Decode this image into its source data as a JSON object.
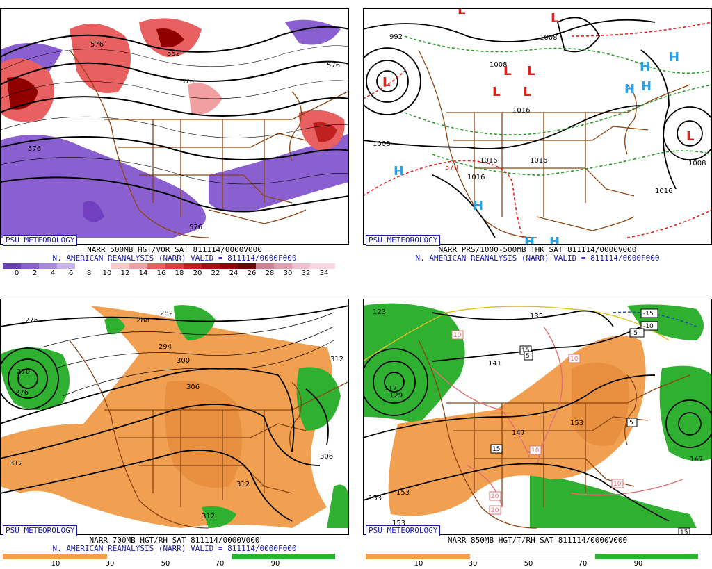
{
  "brand": "PSU METEOROLOGY",
  "panels": [
    {
      "id": "p500",
      "title_line1": "NARR 500MB HGT/VOR SAT 811114/0000V000",
      "title_line2": "N. AMERICAN REANALYSIS (NARR) VALID = 811114/0000F000",
      "scale_type": "vorticity",
      "scale_ticks": [
        "0",
        "2",
        "4",
        "6",
        "8",
        "10",
        "12",
        "14",
        "16",
        "18",
        "20",
        "22",
        "24",
        "26",
        "28",
        "30",
        "32",
        "34"
      ],
      "contour_labels": [
        "576",
        "576",
        "576",
        "552",
        "576",
        "576"
      ],
      "colors": {
        "neg": "#8a60d0",
        "pos": "#e86060",
        "strong": "#900000"
      }
    },
    {
      "id": "psfc",
      "title_line1": "NARR PRS/1000-500MB THK SAT 811114/0000V000",
      "title_line2": "N. AMERICAN REANALYSIS (NARR) VALID = 811114/0000F000",
      "scale_type": "none",
      "scale_ticks": [],
      "contour_labels": [
        "992",
        "1008",
        "1008",
        "1008",
        "1016",
        "1016",
        "1016",
        "1016",
        "1016",
        "1016",
        "570",
        "1008"
      ],
      "pressure_centers": [
        "L",
        "L",
        "L",
        "L",
        "L",
        "L",
        "L",
        "L",
        "H",
        "H",
        "H",
        "H",
        "H",
        "H",
        "H",
        "H"
      ],
      "colors": {
        "low": "#dd2020",
        "high": "#30a0e0",
        "thk_cold": "#2a9a2a",
        "thk_warm": "#dd2020"
      }
    },
    {
      "id": "p700",
      "title_line1": "NARR 700MB HGT/RH SAT 811114/0000V000",
      "title_line2": "N. AMERICAN REANALYSIS (NARR) VALID = 811114/0000F000",
      "scale_type": "rh",
      "scale_ticks": [
        "10",
        "30",
        "50",
        "70",
        "90"
      ],
      "contour_labels": [
        "276",
        "282",
        "288",
        "294",
        "300",
        "306",
        "306",
        "312",
        "312",
        "312",
        "276",
        "270",
        "312"
      ],
      "colors": {
        "dry": "#f0a050",
        "moist": "#30b030"
      }
    },
    {
      "id": "p850",
      "title_line1": "NARR 850MB HGT/T/RH SAT 811114/0000V000",
      "title_line2": "",
      "scale_type": "rh",
      "scale_ticks": [
        "10",
        "30",
        "50",
        "70",
        "90"
      ],
      "contour_labels": [
        "123",
        "129",
        "135",
        "141",
        "147",
        "153",
        "153",
        "153",
        "147",
        "153",
        "117"
      ],
      "temp_labels": [
        "-15",
        "-10",
        "-5",
        "5",
        "10",
        "10",
        "10",
        "15",
        "15",
        "20",
        "20",
        "15",
        "5",
        "10"
      ],
      "colors": {
        "dry": "#f0a050",
        "moist": "#30b030",
        "temp_warm": "#e07070",
        "temp_zero": "#e0c020",
        "temp_cold": "#2040c0"
      }
    }
  ]
}
